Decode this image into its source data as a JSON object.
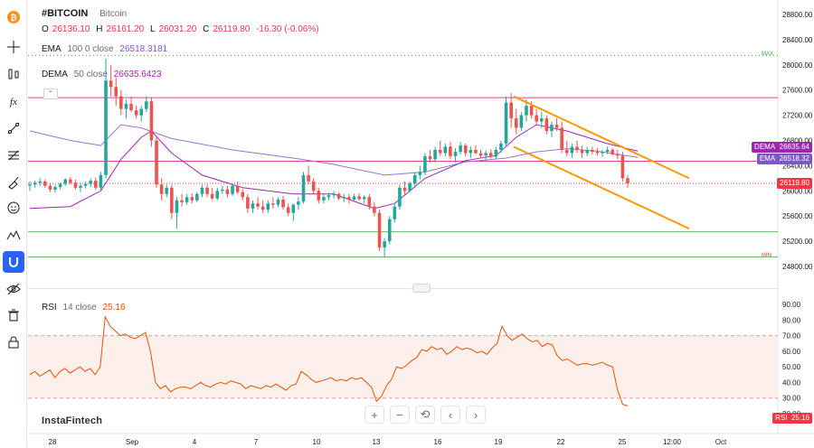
{
  "symbol": {
    "ticker": "#BITCOIN",
    "name": "Bitcoin"
  },
  "ohlc": {
    "o_label": "O",
    "o": "26136.10",
    "h_label": "H",
    "h": "26161.20",
    "l_label": "L",
    "l": "26031.20",
    "c_label": "C",
    "c": "26119.80",
    "change": "-16.30 (-0.06%)"
  },
  "ema": {
    "name": "EMA",
    "params": "100 0 close",
    "value": "26518.3181"
  },
  "dema": {
    "name": "DEMA",
    "params": "50 close",
    "value": "26635.6423"
  },
  "rsi": {
    "name": "RSI",
    "params": "14 close",
    "value": "25.16"
  },
  "price_tags": {
    "dema": {
      "label": "DEMA",
      "value": "26635.64"
    },
    "ema": {
      "label": "EMA",
      "value": "26518.32"
    },
    "last": {
      "value": "26119.80"
    },
    "rsi": {
      "label": "RSI",
      "value": "25.16"
    }
  },
  "markers": {
    "max": "MAX",
    "min": "MIN"
  },
  "brand": "InstaFintech",
  "toolbar": {
    "icons": [
      "bitcoin-icon",
      "crosshair-icon",
      "bars-icon",
      "fx-icon",
      "trendline-icon",
      "fib-icon",
      "brush-icon",
      "emoji-icon",
      "pattern-icon",
      "magnet-icon",
      "eye-icon",
      "trash-icon",
      "lock-icon"
    ]
  },
  "colors": {
    "up": "#26a69a",
    "down": "#ef5350",
    "ema": "#9575cd",
    "dema": "#9c27b0",
    "channel": "#ff9800",
    "rsi": "#e65100",
    "hline_magenta": "#e040a0",
    "hline_green": "#66bb6a",
    "last_price": "#f23645"
  },
  "chart_data": {
    "type": "candlestick",
    "price_axis": {
      "range": [
        24600,
        29000
      ],
      "ticks": [
        "28800.00",
        "28400.00",
        "28000.00",
        "27600.00",
        "27200.00",
        "26800.00",
        "26400.00",
        "26000.00",
        "25600.00",
        "25200.00",
        "24800.00"
      ]
    },
    "time_axis": {
      "labels": [
        "28",
        "Sep",
        "4",
        "7",
        "10",
        "13",
        "16",
        "19",
        "22",
        "25",
        "12:00",
        "Oct"
      ]
    },
    "horizontal_levels": {
      "magenta_top": 27480,
      "magenta_mid": 26470,
      "green_upper": 25350,
      "green_lower": 24950,
      "max_line": 28150,
      "last_price": 26119.8
    },
    "channel": {
      "upper": [
        [
          "Sep 19 12:00",
          27500
        ],
        [
          "Sep 26 12:00",
          26200
        ]
      ],
      "lower": [
        [
          "Sep 19 12:00",
          26700
        ],
        [
          "Sep 26 12:00",
          25400
        ]
      ]
    },
    "candles": [
      [
        26080,
        26150,
        26000,
        26100
      ],
      [
        26100,
        26160,
        26050,
        26130
      ],
      [
        26130,
        26200,
        26080,
        26150
      ],
      [
        26150,
        26180,
        26050,
        26080
      ],
      [
        26080,
        26120,
        25980,
        26020
      ],
      [
        26020,
        26100,
        25970,
        26060
      ],
      [
        26060,
        26130,
        26020,
        26110
      ],
      [
        26110,
        26200,
        26080,
        26180
      ],
      [
        26180,
        26220,
        26100,
        26130
      ],
      [
        26130,
        26180,
        26020,
        26050
      ],
      [
        26050,
        26120,
        25980,
        26080
      ],
      [
        26080,
        26150,
        26040,
        26110
      ],
      [
        26110,
        26200,
        26060,
        26160
      ],
      [
        26160,
        26210,
        26020,
        26050
      ],
      [
        26050,
        26300,
        26000,
        26250
      ],
      [
        26250,
        28100,
        26200,
        27750
      ],
      [
        27750,
        28000,
        27500,
        27650
      ],
      [
        27650,
        27800,
        27350,
        27500
      ],
      [
        27500,
        27600,
        27200,
        27300
      ],
      [
        27300,
        27450,
        27150,
        27380
      ],
      [
        27380,
        27500,
        27250,
        27280
      ],
      [
        27280,
        27350,
        27150,
        27200
      ],
      [
        27200,
        27350,
        27100,
        27300
      ],
      [
        27300,
        27500,
        27250,
        27420
      ],
      [
        27420,
        27480,
        26700,
        26800
      ],
      [
        26800,
        26850,
        26050,
        26100
      ],
      [
        26100,
        26200,
        25850,
        25950
      ],
      [
        25950,
        26100,
        25900,
        26050
      ],
      [
        26050,
        26100,
        25550,
        25650
      ],
      [
        25650,
        25900,
        25400,
        25850
      ],
      [
        25850,
        25950,
        25750,
        25820
      ],
      [
        25820,
        25950,
        25780,
        25900
      ],
      [
        25900,
        25960,
        25800,
        25850
      ],
      [
        25850,
        25980,
        25820,
        25950
      ],
      [
        25950,
        26100,
        25900,
        26050
      ],
      [
        26050,
        26100,
        25900,
        25950
      ],
      [
        25950,
        26050,
        25850,
        25880
      ],
      [
        25880,
        26050,
        25850,
        26000
      ],
      [
        26000,
        26080,
        25950,
        26020
      ],
      [
        26020,
        26080,
        25900,
        25950
      ],
      [
        25950,
        26100,
        25920,
        26080
      ],
      [
        26080,
        26150,
        25950,
        25980
      ],
      [
        25980,
        26030,
        25850,
        25900
      ],
      [
        25900,
        25950,
        25650,
        25720
      ],
      [
        25720,
        25850,
        25650,
        25800
      ],
      [
        25800,
        25900,
        25700,
        25750
      ],
      [
        25750,
        25850,
        25650,
        25700
      ],
      [
        25700,
        25850,
        25650,
        25800
      ],
      [
        25800,
        25900,
        25720,
        25780
      ],
      [
        25780,
        25900,
        25740,
        25860
      ],
      [
        25860,
        25920,
        25700,
        25740
      ],
      [
        25740,
        25800,
        25600,
        25650
      ],
      [
        25650,
        25800,
        25520,
        25780
      ],
      [
        25780,
        25900,
        25700,
        25830
      ],
      [
        25830,
        26300,
        25800,
        26250
      ],
      [
        26250,
        26400,
        26100,
        26150
      ],
      [
        26150,
        26200,
        25950,
        26000
      ],
      [
        26000,
        26050,
        25800,
        25850
      ],
      [
        25850,
        25950,
        25800,
        25900
      ],
      [
        25900,
        25970,
        25850,
        25930
      ],
      [
        25930,
        26000,
        25880,
        25950
      ],
      [
        25950,
        25980,
        25850,
        25880
      ],
      [
        25880,
        25950,
        25820,
        25900
      ],
      [
        25900,
        25950,
        25800,
        25860
      ],
      [
        25860,
        25950,
        25830,
        25910
      ],
      [
        25910,
        25960,
        25840,
        25870
      ],
      [
        25870,
        25930,
        25800,
        25900
      ],
      [
        25900,
        25950,
        25700,
        25750
      ],
      [
        25750,
        25820,
        25600,
        25650
      ],
      [
        25650,
        25700,
        25050,
        25100
      ],
      [
        25100,
        25250,
        24950,
        25200
      ],
      [
        25200,
        25600,
        25150,
        25550
      ],
      [
        25550,
        25800,
        25500,
        25750
      ],
      [
        25750,
        26100,
        25700,
        26050
      ],
      [
        26050,
        26150,
        25950,
        26000
      ],
      [
        26000,
        26150,
        25980,
        26120
      ],
      [
        26120,
        26300,
        26050,
        26250
      ],
      [
        26250,
        26400,
        26180,
        26300
      ],
      [
        26300,
        26600,
        26250,
        26550
      ],
      [
        26550,
        26650,
        26450,
        26500
      ],
      [
        26500,
        26700,
        26450,
        26650
      ],
      [
        26650,
        26800,
        26550,
        26600
      ],
      [
        26600,
        26750,
        26550,
        26700
      ],
      [
        26700,
        26780,
        26500,
        26550
      ],
      [
        26550,
        26680,
        26450,
        26620
      ],
      [
        26620,
        26780,
        26580,
        26720
      ],
      [
        26720,
        26750,
        26550,
        26600
      ],
      [
        26600,
        26700,
        26520,
        26650
      ],
      [
        26650,
        26720,
        26580,
        26600
      ],
      [
        26600,
        26650,
        26520,
        26560
      ],
      [
        26560,
        26640,
        26480,
        26600
      ],
      [
        26600,
        26660,
        26520,
        26540
      ],
      [
        26540,
        26700,
        26500,
        26650
      ],
      [
        26650,
        26800,
        26600,
        26750
      ],
      [
        26750,
        27500,
        26700,
        27400
      ],
      [
        27400,
        27550,
        27000,
        27150
      ],
      [
        27150,
        27300,
        26900,
        27000
      ],
      [
        27000,
        27250,
        26950,
        27200
      ],
      [
        27200,
        27450,
        27100,
        27350
      ],
      [
        27350,
        27420,
        27150,
        27200
      ],
      [
        27200,
        27300,
        27050,
        27100
      ],
      [
        27100,
        27250,
        27000,
        27150
      ],
      [
        27150,
        27200,
        26900,
        26950
      ],
      [
        26950,
        27100,
        26850,
        27050
      ],
      [
        27050,
        27150,
        26950,
        27000
      ],
      [
        27000,
        27100,
        26600,
        26650
      ],
      [
        26650,
        26800,
        26550,
        26600
      ],
      [
        26600,
        26750,
        26520,
        26700
      ],
      [
        26700,
        26800,
        26600,
        26650
      ],
      [
        26650,
        26720,
        26520,
        26600
      ],
      [
        26600,
        26700,
        26550,
        26650
      ],
      [
        26650,
        26700,
        26580,
        26620
      ],
      [
        26620,
        26680,
        26560,
        26600
      ],
      [
        26600,
        26650,
        26540,
        26620
      ],
      [
        26620,
        26700,
        26580,
        26650
      ],
      [
        26650,
        26680,
        26560,
        26580
      ],
      [
        26580,
        26650,
        26500,
        26560
      ],
      [
        26560,
        26620,
        26150,
        26200
      ],
      [
        26200,
        26250,
        26050,
        26120
      ]
    ],
    "ema": [
      [
        0,
        26950
      ],
      [
        8,
        26800
      ],
      [
        14,
        26720
      ],
      [
        18,
        27050
      ],
      [
        22,
        27000
      ],
      [
        28,
        26830
      ],
      [
        40,
        26650
      ],
      [
        52,
        26520
      ],
      [
        60,
        26420
      ],
      [
        70,
        26250
      ],
      [
        78,
        26300
      ],
      [
        86,
        26460
      ],
      [
        94,
        26520
      ],
      [
        100,
        26620
      ],
      [
        106,
        26670
      ],
      [
        112,
        26630
      ],
      [
        120,
        26530
      ]
    ],
    "dema": [
      [
        0,
        25720
      ],
      [
        8,
        25750
      ],
      [
        14,
        26000
      ],
      [
        18,
        26500
      ],
      [
        22,
        26850
      ],
      [
        24,
        26950
      ],
      [
        28,
        26600
      ],
      [
        34,
        26250
      ],
      [
        42,
        26050
      ],
      [
        52,
        25950
      ],
      [
        60,
        25950
      ],
      [
        68,
        25720
      ],
      [
        72,
        25800
      ],
      [
        78,
        26200
      ],
      [
        86,
        26480
      ],
      [
        92,
        26560
      ],
      [
        96,
        26850
      ],
      [
        100,
        27050
      ],
      [
        106,
        26950
      ],
      [
        110,
        26850
      ],
      [
        114,
        26750
      ],
      [
        120,
        26630
      ]
    ],
    "rsi_series": {
      "range": [
        20,
        90
      ],
      "ticks": [
        "90.00",
        "80.00",
        "70.00",
        "60.00",
        "50.00",
        "40.00",
        "30.00",
        "20.00"
      ],
      "overbought": 70,
      "oversold": 30,
      "values": [
        45,
        47,
        44,
        46,
        48,
        43,
        47,
        49,
        46,
        48,
        50,
        47,
        49,
        45,
        50,
        82,
        76,
        73,
        70,
        71,
        69,
        68,
        70,
        72,
        60,
        40,
        36,
        38,
        34,
        36,
        37,
        37,
        36,
        38,
        40,
        38,
        37,
        39,
        40,
        39,
        41,
        40,
        39,
        36,
        38,
        37,
        36,
        38,
        37,
        39,
        37,
        35,
        38,
        39,
        47,
        45,
        42,
        40,
        41,
        42,
        43,
        41,
        42,
        41,
        43,
        42,
        43,
        40,
        37,
        28,
        31,
        38,
        42,
        50,
        49,
        51,
        54,
        56,
        61,
        60,
        63,
        61,
        62,
        58,
        60,
        63,
        61,
        62,
        61,
        59,
        60,
        58,
        62,
        65,
        76,
        70,
        67,
        69,
        71,
        68,
        66,
        67,
        63,
        65,
        64,
        57,
        54,
        55,
        53,
        51,
        52,
        52,
        51,
        52,
        53,
        51,
        50,
        35,
        26,
        25
      ]
    }
  }
}
